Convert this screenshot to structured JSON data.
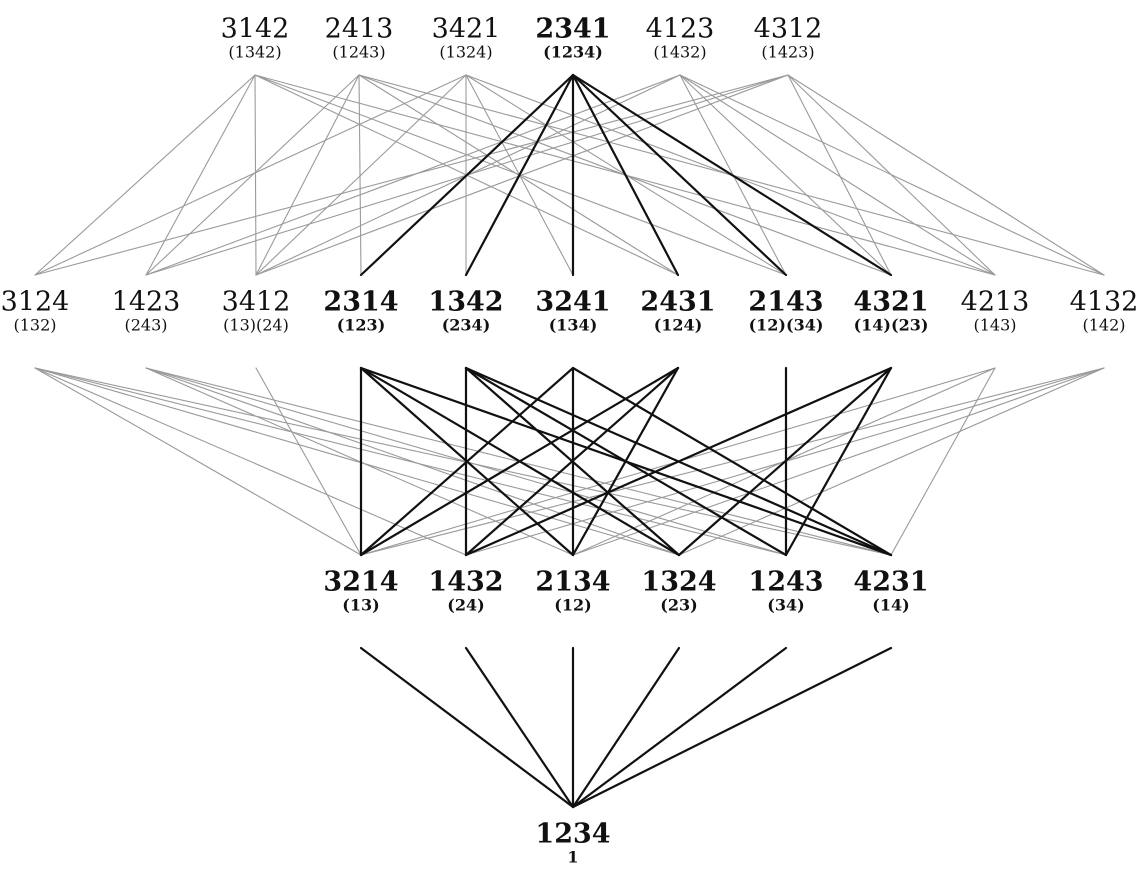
{
  "diagram": {
    "colors": {
      "highlight_edge": "#111111",
      "normal_edge": "#9a9a9a",
      "text": "#111111",
      "background": "#ffffff"
    },
    "nodes": [
      {
        "id": "3142",
        "label": "3142",
        "cycle": "(1342)",
        "bold": false
      },
      {
        "id": "2413",
        "label": "2413",
        "cycle": "(1243)",
        "bold": false
      },
      {
        "id": "3421",
        "label": "3421",
        "cycle": "(1324)",
        "bold": false
      },
      {
        "id": "2341",
        "label": "2341",
        "cycle": "(1234)",
        "bold": true
      },
      {
        "id": "4123",
        "label": "4123",
        "cycle": "(1432)",
        "bold": false
      },
      {
        "id": "4312",
        "label": "4312",
        "cycle": "(1423)",
        "bold": false
      },
      {
        "id": "3124",
        "label": "3124",
        "cycle": "(132)",
        "bold": false
      },
      {
        "id": "1423",
        "label": "1423",
        "cycle": "(243)",
        "bold": false
      },
      {
        "id": "3412",
        "label": "3412",
        "cycle": "(13)(24)",
        "bold": false
      },
      {
        "id": "2314",
        "label": "2314",
        "cycle": "(123)",
        "bold": true
      },
      {
        "id": "1342",
        "label": "1342",
        "cycle": "(234)",
        "bold": true
      },
      {
        "id": "3241",
        "label": "3241",
        "cycle": "(134)",
        "bold": true
      },
      {
        "id": "2431",
        "label": "2431",
        "cycle": "(124)",
        "bold": true
      },
      {
        "id": "2143",
        "label": "2143",
        "cycle": "(12)(34)",
        "bold": true
      },
      {
        "id": "4321",
        "label": "4321",
        "cycle": "(14)(23)",
        "bold": true
      },
      {
        "id": "4213",
        "label": "4213",
        "cycle": "(143)",
        "bold": false
      },
      {
        "id": "4132",
        "label": "4132",
        "cycle": "(142)",
        "bold": false
      },
      {
        "id": "3214",
        "label": "3214",
        "cycle": "(13)",
        "bold": true
      },
      {
        "id": "1432",
        "label": "1432",
        "cycle": "(24)",
        "bold": true
      },
      {
        "id": "2134",
        "label": "2134",
        "cycle": "(12)",
        "bold": true
      },
      {
        "id": "1324",
        "label": "1324",
        "cycle": "(23)",
        "bold": true
      },
      {
        "id": "1243",
        "label": "1243",
        "cycle": "(34)",
        "bold": true
      },
      {
        "id": "4231",
        "label": "4231",
        "cycle": "(14)",
        "bold": true
      },
      {
        "id": "1234",
        "label": "1234",
        "cycle": "1",
        "bold": true
      }
    ],
    "edges": [
      {
        "from": "1234",
        "to": "3214",
        "bold": true
      },
      {
        "from": "1234",
        "to": "1432",
        "bold": true
      },
      {
        "from": "1234",
        "to": "2134",
        "bold": true
      },
      {
        "from": "1234",
        "to": "1324",
        "bold": true
      },
      {
        "from": "1234",
        "to": "1243",
        "bold": true
      },
      {
        "from": "1234",
        "to": "4231",
        "bold": true
      },
      {
        "from": "3214",
        "to": "2314",
        "bold": true
      },
      {
        "from": "3214",
        "to": "3241",
        "bold": true
      },
      {
        "from": "3214",
        "to": "2431",
        "bold": true
      },
      {
        "from": "1432",
        "to": "1342",
        "bold": true
      },
      {
        "from": "1432",
        "to": "2431",
        "bold": true
      },
      {
        "from": "1432",
        "to": "4321",
        "bold": true
      },
      {
        "from": "2134",
        "to": "2314",
        "bold": true
      },
      {
        "from": "2134",
        "to": "3241",
        "bold": true
      },
      {
        "from": "2134",
        "to": "2431",
        "bold": true
      },
      {
        "from": "1324",
        "to": "2314",
        "bold": true
      },
      {
        "from": "1324",
        "to": "1342",
        "bold": true
      },
      {
        "from": "1324",
        "to": "4321",
        "bold": true
      },
      {
        "from": "1243",
        "to": "1342",
        "bold": true
      },
      {
        "from": "1243",
        "to": "2143",
        "bold": true
      },
      {
        "from": "1243",
        "to": "4321",
        "bold": true
      },
      {
        "from": "4231",
        "to": "2314",
        "bold": true
      },
      {
        "from": "4231",
        "to": "1342",
        "bold": true
      },
      {
        "from": "4231",
        "to": "3241",
        "bold": true
      },
      {
        "from": "3214",
        "to": "3124",
        "bold": false
      },
      {
        "from": "3214",
        "to": "3412",
        "bold": false
      },
      {
        "from": "3214",
        "to": "4213",
        "bold": false
      },
      {
        "from": "3214",
        "to": "4132",
        "bold": false
      },
      {
        "from": "1432",
        "to": "3124",
        "bold": false
      },
      {
        "from": "1432",
        "to": "4132",
        "bold": false
      },
      {
        "from": "2134",
        "to": "1423",
        "bold": false
      },
      {
        "from": "2134",
        "to": "4213",
        "bold": false
      },
      {
        "from": "2134",
        "to": "4132",
        "bold": false
      },
      {
        "from": "1324",
        "to": "3124",
        "bold": false
      },
      {
        "from": "1324",
        "to": "1423",
        "bold": false
      },
      {
        "from": "1324",
        "to": "4132",
        "bold": false
      },
      {
        "from": "1243",
        "to": "3124",
        "bold": false
      },
      {
        "from": "1243",
        "to": "1423",
        "bold": false
      },
      {
        "from": "4231",
        "to": "3124",
        "bold": false
      },
      {
        "from": "4231",
        "to": "1423",
        "bold": false
      },
      {
        "from": "4231",
        "to": "4213",
        "bold": false
      },
      {
        "from": "2341",
        "to": "2314",
        "bold": true
      },
      {
        "from": "2341",
        "to": "1342",
        "bold": true
      },
      {
        "from": "2341",
        "to": "3241",
        "bold": true
      },
      {
        "from": "2341",
        "to": "2431",
        "bold": true
      },
      {
        "from": "2341",
        "to": "2143",
        "bold": true
      },
      {
        "from": "2341",
        "to": "4321",
        "bold": true
      },
      {
        "from": "3142",
        "to": "3124",
        "bold": false
      },
      {
        "from": "3142",
        "to": "1423",
        "bold": false
      },
      {
        "from": "3142",
        "to": "3412",
        "bold": false
      },
      {
        "from": "3142",
        "to": "2431",
        "bold": false
      },
      {
        "from": "3142",
        "to": "2143",
        "bold": false
      },
      {
        "from": "3142",
        "to": "4213",
        "bold": false
      },
      {
        "from": "2413",
        "to": "1423",
        "bold": false
      },
      {
        "from": "2413",
        "to": "3412",
        "bold": false
      },
      {
        "from": "2413",
        "to": "2314",
        "bold": false
      },
      {
        "from": "2413",
        "to": "2431",
        "bold": false
      },
      {
        "from": "2413",
        "to": "4321",
        "bold": false
      },
      {
        "from": "2413",
        "to": "4132",
        "bold": false
      },
      {
        "from": "3421",
        "to": "3124",
        "bold": false
      },
      {
        "from": "3421",
        "to": "1342",
        "bold": false
      },
      {
        "from": "3421",
        "to": "3412",
        "bold": false
      },
      {
        "from": "3421",
        "to": "3241",
        "bold": false
      },
      {
        "from": "3421",
        "to": "2143",
        "bold": false
      },
      {
        "from": "3421",
        "to": "4213",
        "bold": false
      },
      {
        "from": "4123",
        "to": "1423",
        "bold": false
      },
      {
        "from": "4123",
        "to": "3412",
        "bold": false
      },
      {
        "from": "4123",
        "to": "2143",
        "bold": false
      },
      {
        "from": "4123",
        "to": "4321",
        "bold": false
      },
      {
        "from": "4123",
        "to": "4213",
        "bold": false
      },
      {
        "from": "4123",
        "to": "4132",
        "bold": false
      },
      {
        "from": "4312",
        "to": "3124",
        "bold": false
      },
      {
        "from": "4312",
        "to": "1423",
        "bold": false
      },
      {
        "from": "4312",
        "to": "3412",
        "bold": false
      },
      {
        "from": "4312",
        "to": "4321",
        "bold": false
      },
      {
        "from": "4312",
        "to": "4213",
        "bold": false
      },
      {
        "from": "4312",
        "to": "4132",
        "bold": false
      }
    ]
  }
}
